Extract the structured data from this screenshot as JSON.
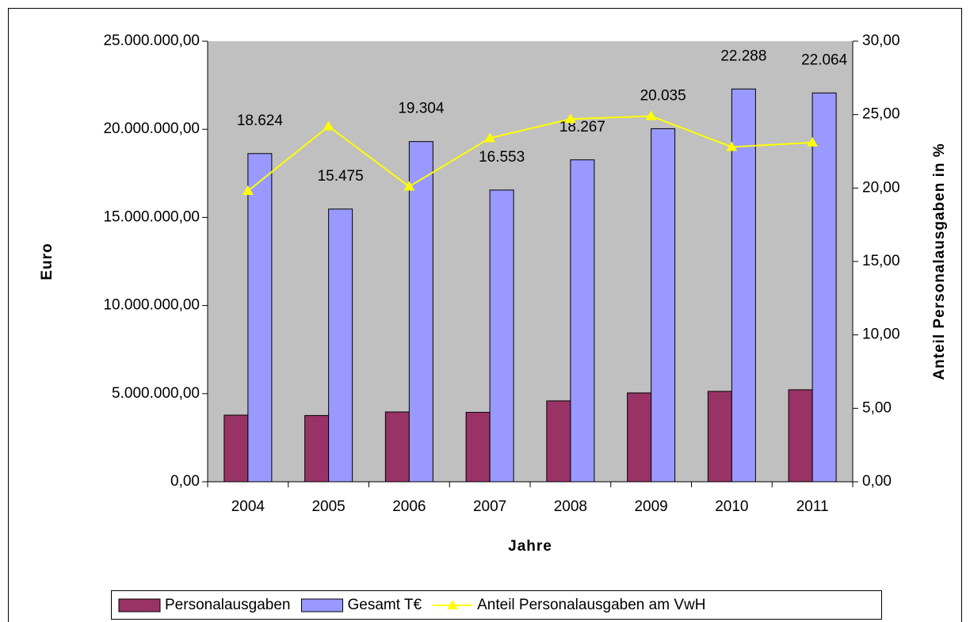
{
  "chart_data": {
    "type": "bar",
    "x_label": "Jahre",
    "y_label": "Euro",
    "y2_label": "Anteil Personalausgaben in %",
    "categories": [
      "2004",
      "2005",
      "2006",
      "2007",
      "2008",
      "2009",
      "2010",
      "2011"
    ],
    "series": [
      {
        "name": "Personalausgaben",
        "color": "#993366",
        "values": [
          3780000,
          3760000,
          3960000,
          3940000,
          4590000,
          5040000,
          5130000,
          5220000
        ]
      },
      {
        "name": "Gesamt T€",
        "color": "#9999ff",
        "values": [
          18624000,
          15475000,
          19304000,
          16553000,
          18267000,
          20035000,
          22288000,
          22064000
        ],
        "value_labels": [
          "18.624",
          "15.475",
          "19.304",
          "16.553",
          "18.267",
          "20.035",
          "22.288",
          "22.064"
        ]
      },
      {
        "name": "Anteil Personalausgaben am VwH",
        "type": "line",
        "axis": "y2",
        "color": "#ffff00",
        "values": [
          19.8,
          24.2,
          20.1,
          23.4,
          24.7,
          24.9,
          22.8,
          23.1
        ]
      }
    ],
    "ylim": [
      0,
      25000000
    ],
    "yticks": [
      {
        "value": 0,
        "label": "0,00"
      },
      {
        "value": 5000000,
        "label": "5.000.000,00"
      },
      {
        "value": 10000000,
        "label": "10.000.000,00"
      },
      {
        "value": 15000000,
        "label": "15.000.000,00"
      },
      {
        "value": 20000000,
        "label": "20.000.000,00"
      },
      {
        "value": 25000000,
        "label": "25.000.000,00"
      }
    ],
    "y2lim": [
      0,
      30
    ],
    "y2ticks": [
      {
        "value": 0,
        "label": "0,00"
      },
      {
        "value": 5,
        "label": "5,00"
      },
      {
        "value": 10,
        "label": "10,00"
      },
      {
        "value": 15,
        "label": "15,00"
      },
      {
        "value": 20,
        "label": "20,00"
      },
      {
        "value": 25,
        "label": "25,00"
      },
      {
        "value": 30,
        "label": "30,00"
      }
    ],
    "plot_background": "#c0c0c0",
    "legend": "bottom"
  }
}
